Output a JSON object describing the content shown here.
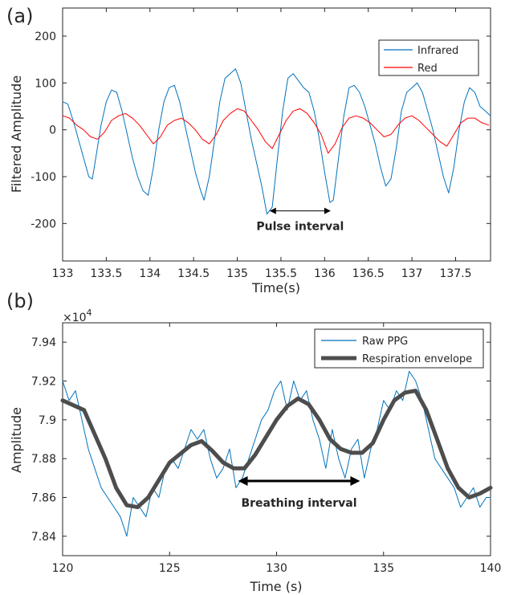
{
  "chart_data": [
    {
      "panel_label": "(a)",
      "type": "line",
      "xlabel": "Time(s)",
      "ylabel": "Filtered Amplitude",
      "xlim": [
        133,
        137.9
      ],
      "ylim": [
        -280,
        260
      ],
      "x_ticks": [
        133,
        133.5,
        134,
        134.5,
        135,
        135.5,
        136,
        136.5,
        137,
        137.5
      ],
      "y_ticks": [
        -200,
        -100,
        0,
        100,
        200
      ],
      "legend_position": "top-right",
      "series": [
        {
          "name": "Infrared",
          "color": "#0072BD",
          "x": [
            133,
            133.06,
            133.12,
            133.18,
            133.24,
            133.3,
            133.34,
            133.38,
            133.44,
            133.5,
            133.56,
            133.62,
            133.68,
            133.74,
            133.8,
            133.86,
            133.92,
            133.98,
            134.04,
            134.1,
            134.16,
            134.22,
            134.28,
            134.34,
            134.4,
            134.46,
            134.52,
            134.58,
            134.62,
            134.68,
            134.74,
            134.8,
            134.86,
            134.92,
            134.98,
            135.04,
            135.1,
            135.16,
            135.22,
            135.28,
            135.34,
            135.4,
            135.46,
            135.52,
            135.58,
            135.64,
            135.7,
            135.76,
            135.82,
            135.88,
            135.94,
            136.0,
            136.06,
            136.1,
            136.16,
            136.22,
            136.28,
            136.34,
            136.4,
            136.46,
            136.52,
            136.58,
            136.64,
            136.7,
            136.76,
            136.82,
            136.88,
            136.94,
            137.0,
            137.06,
            137.12,
            137.18,
            137.24,
            137.3,
            137.36,
            137.42,
            137.48,
            137.54,
            137.6,
            137.66,
            137.72,
            137.78,
            137.84,
            137.9
          ],
          "y": [
            60,
            55,
            20,
            -20,
            -60,
            -100,
            -105,
            -60,
            10,
            60,
            85,
            80,
            40,
            -10,
            -60,
            -100,
            -130,
            -140,
            -80,
            0,
            60,
            90,
            95,
            60,
            10,
            -40,
            -90,
            -130,
            -150,
            -100,
            -20,
            60,
            110,
            120,
            130,
            100,
            40,
            -20,
            -70,
            -120,
            -180,
            -165,
            -60,
            40,
            110,
            120,
            105,
            90,
            80,
            40,
            -20,
            -90,
            -155,
            -150,
            -60,
            30,
            90,
            95,
            80,
            50,
            10,
            -30,
            -80,
            -120,
            -105,
            -40,
            40,
            80,
            90,
            100,
            80,
            40,
            0,
            -50,
            -100,
            -135,
            -80,
            0,
            60,
            90,
            80,
            50,
            40,
            30
          ]
        },
        {
          "name": "Red",
          "color": "#FF0000",
          "x": [
            133,
            133.08,
            133.16,
            133.24,
            133.32,
            133.4,
            133.48,
            133.56,
            133.64,
            133.72,
            133.8,
            133.88,
            133.96,
            134.04,
            134.12,
            134.2,
            134.28,
            134.36,
            134.44,
            134.52,
            134.6,
            134.68,
            134.76,
            134.84,
            134.92,
            135.0,
            135.08,
            135.16,
            135.24,
            135.32,
            135.4,
            135.48,
            135.56,
            135.64,
            135.72,
            135.8,
            135.88,
            135.96,
            136.04,
            136.12,
            136.2,
            136.28,
            136.36,
            136.44,
            136.52,
            136.6,
            136.68,
            136.76,
            136.84,
            136.92,
            137.0,
            137.08,
            137.16,
            137.24,
            137.32,
            137.4,
            137.48,
            137.56,
            137.64,
            137.72,
            137.8,
            137.88
          ],
          "y": [
            30,
            25,
            10,
            0,
            -15,
            -20,
            -5,
            20,
            30,
            35,
            25,
            10,
            -10,
            -30,
            -15,
            10,
            20,
            25,
            15,
            0,
            -20,
            -30,
            -10,
            20,
            35,
            45,
            40,
            20,
            0,
            -25,
            -40,
            -10,
            20,
            40,
            45,
            35,
            15,
            -10,
            -50,
            -30,
            5,
            25,
            30,
            25,
            15,
            0,
            -15,
            -10,
            10,
            25,
            30,
            20,
            5,
            -10,
            -25,
            -35,
            -10,
            15,
            25,
            25,
            15,
            10
          ]
        }
      ],
      "annotations": [
        {
          "text": "Pulse interval",
          "x1": 135.37,
          "x2": 136.07,
          "y": -173
        }
      ]
    },
    {
      "panel_label": "(b)",
      "type": "line",
      "xlabel": "Time (s)",
      "ylabel": "Amplitude",
      "y_exponent_label": "×10",
      "y_exponent": "4",
      "xlim": [
        120,
        140
      ],
      "ylim": [
        7.83,
        7.95
      ],
      "x_ticks": [
        120,
        125,
        130,
        135,
        140
      ],
      "y_ticks": [
        7.84,
        7.86,
        7.88,
        7.9,
        7.92,
        7.94
      ],
      "legend_position": "top-right",
      "series": [
        {
          "name": "Raw PPG",
          "color": "#0072BD",
          "x": [
            120,
            120.3,
            120.6,
            120.9,
            121.2,
            121.5,
            121.8,
            122.1,
            122.4,
            122.7,
            123.0,
            123.3,
            123.6,
            123.9,
            124.2,
            124.5,
            124.8,
            125.1,
            125.4,
            125.7,
            126.0,
            126.3,
            126.6,
            126.9,
            127.2,
            127.5,
            127.8,
            128.1,
            128.4,
            128.7,
            129.0,
            129.3,
            129.6,
            129.9,
            130.2,
            130.5,
            130.8,
            131.1,
            131.4,
            131.7,
            132.0,
            132.3,
            132.6,
            132.9,
            133.2,
            133.5,
            133.8,
            134.1,
            134.4,
            134.7,
            135.0,
            135.3,
            135.6,
            135.9,
            136.2,
            136.5,
            136.8,
            137.1,
            137.4,
            137.7,
            138.0,
            138.3,
            138.6,
            138.9,
            139.2,
            139.5,
            139.8,
            140
          ],
          "y": [
            7.92,
            7.91,
            7.915,
            7.9,
            7.885,
            7.875,
            7.865,
            7.86,
            7.855,
            7.85,
            7.84,
            7.86,
            7.855,
            7.85,
            7.865,
            7.86,
            7.875,
            7.88,
            7.875,
            7.885,
            7.895,
            7.89,
            7.895,
            7.88,
            7.87,
            7.875,
            7.885,
            7.865,
            7.87,
            7.88,
            7.89,
            7.9,
            7.905,
            7.915,
            7.92,
            7.905,
            7.92,
            7.91,
            7.915,
            7.9,
            7.89,
            7.875,
            7.895,
            7.88,
            7.87,
            7.885,
            7.89,
            7.87,
            7.885,
            7.895,
            7.91,
            7.905,
            7.915,
            7.91,
            7.925,
            7.92,
            7.91,
            7.895,
            7.88,
            7.875,
            7.87,
            7.865,
            7.855,
            7.86,
            7.865,
            7.855,
            7.86,
            7.86
          ]
        },
        {
          "name": "Respiration envelope",
          "color": "#4D4D4D",
          "x": [
            120,
            121,
            122,
            122.5,
            123,
            123.5,
            124,
            125,
            126,
            126.5,
            127,
            127.5,
            128,
            128.5,
            129,
            130,
            130.5,
            131,
            131.5,
            132,
            132.5,
            133,
            133.5,
            134,
            134.5,
            135,
            135.5,
            136,
            136.5,
            137,
            137.5,
            138,
            138.5,
            139,
            139.5,
            140
          ],
          "y": [
            7.91,
            7.905,
            7.88,
            7.865,
            7.856,
            7.855,
            7.86,
            7.878,
            7.887,
            7.889,
            7.884,
            7.878,
            7.875,
            7.875,
            7.882,
            7.9,
            7.907,
            7.911,
            7.908,
            7.9,
            7.89,
            7.885,
            7.883,
            7.883,
            7.888,
            7.9,
            7.91,
            7.914,
            7.915,
            7.905,
            7.89,
            7.875,
            7.865,
            7.86,
            7.862,
            7.865
          ]
        }
      ],
      "annotations": [
        {
          "text": "Breathing interval",
          "x1": 128.2,
          "x2": 133.9,
          "y": 7.8685
        }
      ]
    }
  ]
}
